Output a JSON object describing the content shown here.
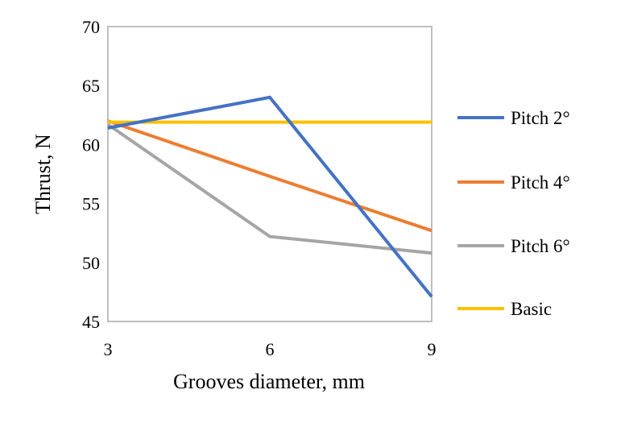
{
  "chart_data": {
    "type": "line",
    "title": "",
    "xlabel": "Grooves diameter, mm",
    "ylabel": "Thrust, N",
    "x": [
      3,
      6,
      9
    ],
    "xticks": [
      "3",
      "6",
      "9"
    ],
    "ylim": [
      45,
      70
    ],
    "yticks": [
      45,
      50,
      55,
      60,
      65,
      70
    ],
    "grid": false,
    "legend": "right",
    "series": [
      {
        "name": "Pitch 2°",
        "values": [
          61.4,
          64.0,
          47.1
        ],
        "color": "#4472C4"
      },
      {
        "name": "Pitch 4°",
        "values": [
          62.0,
          57.3,
          52.7
        ],
        "color": "#ED7D31"
      },
      {
        "name": "Pitch 6°",
        "values": [
          61.7,
          52.2,
          50.8
        ],
        "color": "#A5A5A5"
      },
      {
        "name": "Basic",
        "values": [
          61.9,
          61.9,
          61.9
        ],
        "color": "#FFC000"
      }
    ],
    "frame_color": "#BFBFBF"
  }
}
